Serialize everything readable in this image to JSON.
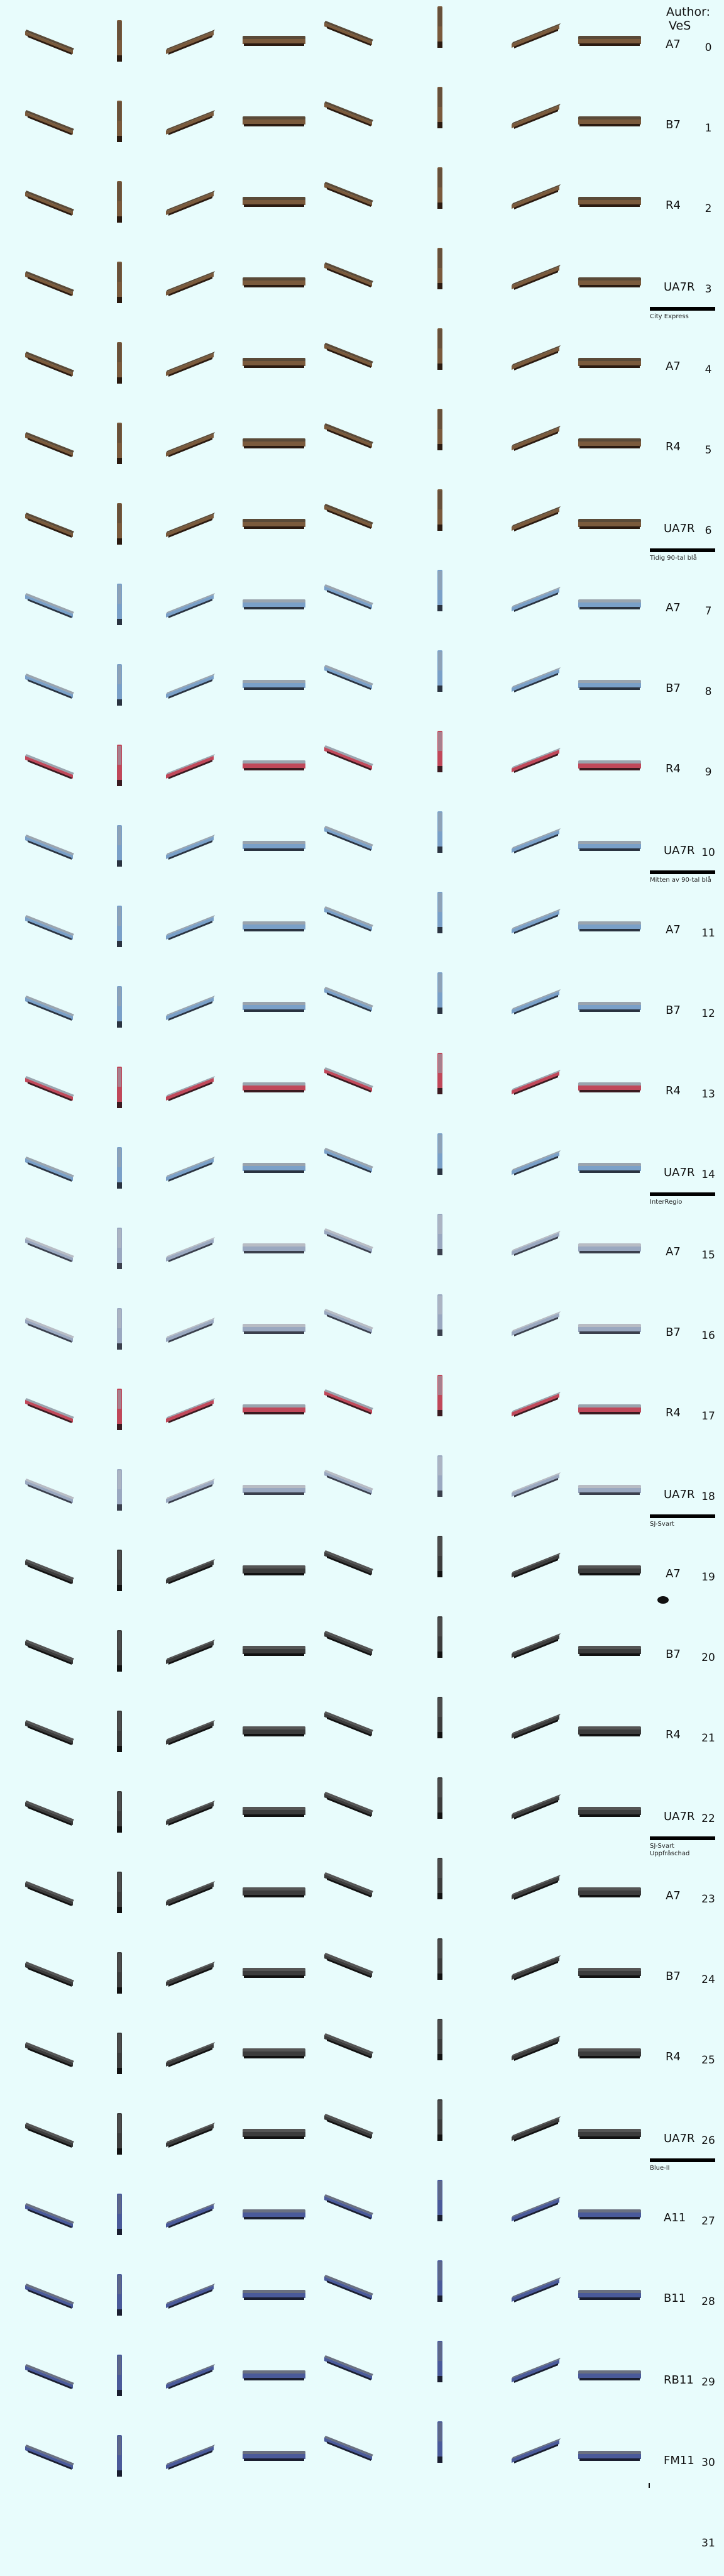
{
  "author": {
    "label": "Author:",
    "name": "VeS"
  },
  "rows": [
    {
      "index": "0",
      "code": "A7",
      "livery": "brown"
    },
    {
      "index": "1",
      "code": "B7",
      "livery": "brown"
    },
    {
      "index": "2",
      "code": "R4",
      "livery": "brown"
    },
    {
      "index": "3",
      "code": "UA7R",
      "livery": "brown",
      "bar": true,
      "note": "City Express"
    },
    {
      "index": "4",
      "code": "A7",
      "livery": "brown"
    },
    {
      "index": "5",
      "code": "R4",
      "livery": "brown"
    },
    {
      "index": "6",
      "code": "UA7R",
      "livery": "brown",
      "bar": true,
      "note": "Tidig 90-tal blå"
    },
    {
      "index": "7",
      "code": "A7",
      "livery": "blue"
    },
    {
      "index": "8",
      "code": "B7",
      "livery": "blue"
    },
    {
      "index": "9",
      "code": "R4",
      "livery": "red"
    },
    {
      "index": "10",
      "code": "UA7R",
      "livery": "blue",
      "bar": true,
      "note": "Mitten av 90-tal blå"
    },
    {
      "index": "11",
      "code": "A7",
      "livery": "blue"
    },
    {
      "index": "12",
      "code": "B7",
      "livery": "blue"
    },
    {
      "index": "13",
      "code": "R4",
      "livery": "red"
    },
    {
      "index": "14",
      "code": "UA7R",
      "livery": "blue",
      "bar": true,
      "note": "InterRegio"
    },
    {
      "index": "15",
      "code": "A7",
      "livery": "silver"
    },
    {
      "index": "16",
      "code": "B7",
      "livery": "silver"
    },
    {
      "index": "17",
      "code": "R4",
      "livery": "red"
    },
    {
      "index": "18",
      "code": "UA7R",
      "livery": "silver",
      "bar": true,
      "note": "SJ-Svart"
    },
    {
      "index": "19",
      "code": "A7",
      "livery": "black",
      "blob": true
    },
    {
      "index": "20",
      "code": "B7",
      "livery": "black"
    },
    {
      "index": "21",
      "code": "R4",
      "livery": "black"
    },
    {
      "index": "22",
      "code": "UA7R",
      "livery": "black",
      "bar": true,
      "note": "SJ-Svart\nUppfräschad"
    },
    {
      "index": "23",
      "code": "A7",
      "livery": "black"
    },
    {
      "index": "24",
      "code": "B7",
      "livery": "black"
    },
    {
      "index": "25",
      "code": "R4",
      "livery": "black"
    },
    {
      "index": "26",
      "code": "UA7R",
      "livery": "black",
      "bar": true,
      "note": "Blue-II"
    },
    {
      "index": "27",
      "code": "A11",
      "livery": "navy"
    },
    {
      "index": "28",
      "code": "B11",
      "livery": "navy"
    },
    {
      "index": "29",
      "code": "RB11",
      "livery": "navy"
    },
    {
      "index": "30",
      "code": "FM11",
      "livery": "navy",
      "tick": true
    },
    {
      "index": "31",
      "code": "",
      "livery": "none"
    }
  ],
  "livery_colors": {
    "brown": {
      "body": "#7a5a3c",
      "roof": "#5a4a38",
      "accent": "#b06a3a",
      "base": "#2a1a10"
    },
    "blue": {
      "body": "#7aa0c8",
      "roof": "#9aa4ae",
      "accent": "#4a78b0",
      "base": "#2a3340"
    },
    "red": {
      "body": "#c0485a",
      "roof": "#9aa4ae",
      "accent": "#a8303e",
      "base": "#3a1a20"
    },
    "silver": {
      "body": "#9aa8c0",
      "roof": "#b8bcc4",
      "accent": "#6a78a0",
      "base": "#3a3f4c"
    },
    "black": {
      "body": "#3c3c3c",
      "roof": "#555555",
      "accent": "#2a2a2a",
      "base": "#111111"
    },
    "navy": {
      "body": "#4a5a9a",
      "roof": "#6a7080",
      "accent": "#34407a",
      "base": "#1a1e30"
    }
  }
}
